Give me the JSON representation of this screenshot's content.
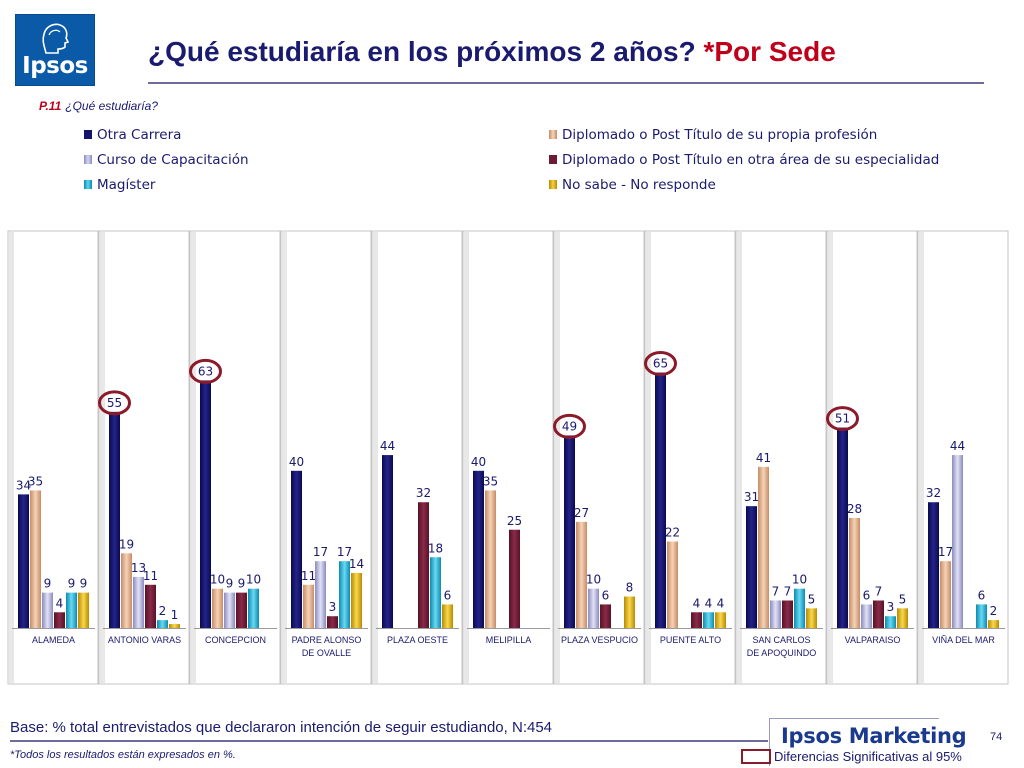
{
  "header": {
    "logo_text": "Ipsos",
    "title_main": "¿Qué estudiaría en los próximos 2 años? ",
    "title_accent": "*Por Sede"
  },
  "question": {
    "code": "P.11",
    "text": "¿Qué estudiaría?"
  },
  "legend": [
    {
      "label": "Otra Carrera",
      "color": "#14146b"
    },
    {
      "label": "Curso de Capacitación",
      "color": "#a9a9d6"
    },
    {
      "label": "Magíster",
      "color": "#1fb3d6"
    },
    {
      "label": "Diplomado o Post Título de su propia profesión",
      "color": "#e3b28c"
    },
    {
      "label": "Diplomado o Post Título en otra área de su especialidad",
      "color": "#6e1c36"
    },
    {
      "label": "No sabe - No responde",
      "color": "#e0b000"
    }
  ],
  "chart_data": {
    "type": "bar",
    "series_order": [
      "Otra Carrera",
      "Diplomado o Post Título de su propia profesión",
      "Curso de Capacitación",
      "Diplomado o Post Título en otra área de su especialidad",
      "Magíster",
      "No sabe - No responde"
    ],
    "groups": [
      {
        "label": "ALAMEDA",
        "values": [
          34,
          35,
          9,
          4,
          9,
          9
        ],
        "highlight": null
      },
      {
        "label": "ANTONIO VARAS",
        "values": [
          55,
          19,
          13,
          11,
          2,
          1
        ],
        "highlight": 0
      },
      {
        "label": "CONCEPCION",
        "values": [
          63,
          10,
          9,
          9,
          10,
          null
        ],
        "highlight": 0
      },
      {
        "label": "PADRE ALONSO DE OVALLE",
        "values": [
          40,
          11,
          17,
          3,
          17,
          14
        ],
        "highlight": null
      },
      {
        "label": "PLAZA OESTE",
        "values": [
          44,
          null,
          null,
          32,
          18,
          6
        ],
        "highlight": null
      },
      {
        "label": "MELIPILLA",
        "values": [
          40,
          35,
          null,
          25,
          null,
          null
        ],
        "highlight": null
      },
      {
        "label": "PLAZA VESPUCIO",
        "values": [
          49,
          27,
          10,
          6,
          null,
          8
        ],
        "highlight": 0
      },
      {
        "label": "PUENTE ALTO",
        "values": [
          65,
          22,
          null,
          4,
          4,
          4
        ],
        "highlight": 0
      },
      {
        "label": "SAN CARLOS DE APOQUINDO",
        "values": [
          31,
          41,
          7,
          7,
          10,
          5
        ],
        "highlight": null
      },
      {
        "label": "VALPARAISO",
        "values": [
          51,
          28,
          6,
          7,
          3,
          5
        ],
        "highlight": 0
      },
      {
        "label": "VIÑA DEL MAR",
        "values": [
          32,
          17,
          44,
          null,
          6,
          2
        ],
        "highlight": null
      }
    ],
    "ylim": [
      0,
      70
    ],
    "grid": false
  },
  "footer": {
    "base": "Base: % total entrevistados que declararon intención de seguir estudiando, N:454",
    "note": "*Todos los resultados están expresados en %.",
    "brand": "Ipsos Marketing",
    "page": "74",
    "significance_label": "Diferencias Significativas al 95%"
  }
}
